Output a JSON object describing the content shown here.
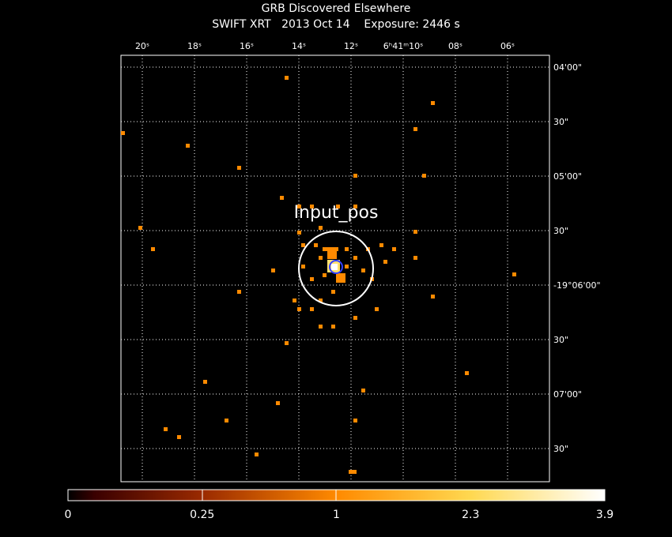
{
  "header": {
    "title": "GRB Discovered Elsewhere",
    "subtitle": "SWIFT XRT   2013 Oct 14    Exposure: 2446 s"
  },
  "image": {
    "source_label": "Input_pos",
    "ra_ticks": [
      "20ˢ",
      "18ˢ",
      "16ˢ",
      "14ˢ",
      "12ˢ",
      "6ʰ41ᵐ10ˢ",
      "08ˢ",
      "06ˢ"
    ],
    "dec_ticks": [
      "04'00\"",
      "30\"",
      "05'00\"",
      "30\"",
      "-19°06'00\"",
      "30\"",
      "07'00\"",
      "30\""
    ]
  },
  "colorbar": {
    "ticks": [
      "0",
      "0.25",
      "1",
      "2.3",
      "3.9"
    ]
  }
}
